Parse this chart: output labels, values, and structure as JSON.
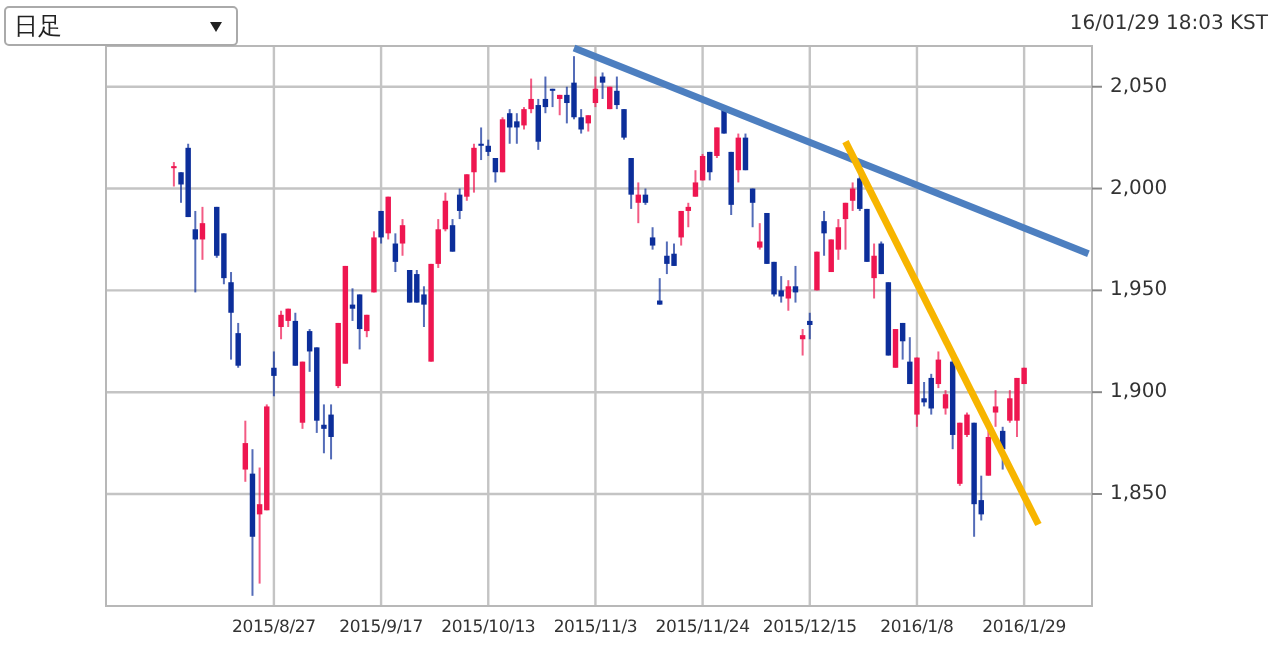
{
  "chart_data": {
    "type": "candlestick",
    "categories": [
      null,
      null,
      null,
      null,
      null,
      null,
      null,
      null,
      null,
      null,
      null,
      null,
      null,
      null,
      null,
      null,
      null,
      null,
      null,
      null,
      null,
      null,
      null,
      "2015/8/27",
      null,
      null,
      null,
      null,
      null,
      null,
      null,
      null,
      null,
      null,
      null,
      null,
      null,
      null,
      "2015/9/17",
      null,
      null,
      null,
      null,
      null,
      null,
      null,
      null,
      null,
      null,
      null,
      null,
      null,
      null,
      "2015/10/13",
      null,
      null,
      null,
      null,
      null,
      null,
      null,
      null,
      null,
      null,
      null,
      null,
      null,
      null,
      "2015/11/3",
      null,
      null,
      null,
      null,
      null,
      null,
      null,
      null,
      null,
      null,
      null,
      null,
      null,
      null,
      "2015/11/24",
      null,
      null,
      null,
      null,
      null,
      null,
      null,
      null,
      null,
      null,
      null,
      null,
      null,
      null,
      "2015/12/15",
      null,
      null,
      null,
      null,
      null,
      null,
      null,
      null,
      null,
      null,
      null,
      null,
      null,
      null,
      "2016/1/8",
      null,
      null,
      null,
      null,
      null,
      null,
      null,
      null,
      null,
      null,
      null,
      null,
      null,
      null,
      "2016/1/29",
      null,
      null,
      null,
      null,
      null,
      null,
      null,
      null,
      null
    ],
    "ohlc": [
      null,
      null,
      null,
      null,
      null,
      null,
      null,
      null,
      null,
      [
        2010,
        2013,
        2001,
        2011
      ],
      [
        2008,
        2008,
        1993,
        2002
      ],
      [
        2020,
        2022,
        1986,
        1986
      ],
      [
        1980,
        1989,
        1949,
        1975
      ],
      [
        1975,
        1991,
        1965,
        1983
      ],
      null,
      [
        1991,
        1991,
        1966,
        1967
      ],
      [
        1978,
        1978,
        1953,
        1956
      ],
      [
        1954,
        1959,
        1916,
        1939
      ],
      [
        1929,
        1934,
        1912,
        1913
      ],
      [
        1862,
        1886,
        1856,
        1875
      ],
      [
        1860,
        1872,
        1800,
        1829
      ],
      [
        1840,
        1863,
        1806,
        1845
      ],
      [
        1842,
        1894,
        1842,
        1893
      ],
      [
        1912,
        1920,
        1898,
        1908
      ],
      [
        1932,
        1940,
        1926,
        1938
      ],
      [
        1935,
        1941,
        1932,
        1941
      ],
      [
        1935,
        1939,
        1913,
        1913
      ],
      [
        1885,
        1915,
        1882,
        1915
      ],
      [
        1930,
        1931,
        1910,
        1920
      ],
      [
        1922,
        1922,
        1880,
        1886
      ],
      [
        1884,
        1894,
        1870,
        1882
      ],
      [
        1889,
        1894,
        1867,
        1878
      ],
      [
        1903,
        1934,
        1902,
        1934
      ],
      [
        1914,
        1962,
        1914,
        1962
      ],
      [
        1943,
        1951,
        1935,
        1941
      ],
      [
        1948,
        1948,
        1921,
        1931
      ],
      [
        1930,
        1938,
        1927,
        1938
      ],
      [
        1949,
        1979,
        1949,
        1976
      ],
      [
        1989,
        1989,
        1973,
        1976
      ],
      [
        1978,
        1996,
        1975,
        1996
      ],
      [
        1973,
        1978,
        1959,
        1964
      ],
      [
        1973,
        1985,
        1967,
        1982
      ],
      [
        1960,
        1960,
        1944,
        1944
      ],
      [
        1958,
        1960,
        1944,
        1944
      ],
      [
        1948,
        1952,
        1932,
        1943
      ],
      [
        1915,
        1963,
        1915,
        1963
      ],
      [
        1963,
        1985,
        1961,
        1980
      ],
      [
        1980,
        1998,
        1979,
        1994
      ],
      [
        1982,
        1985,
        1969,
        1969
      ],
      [
        1997,
        2000,
        1985,
        1989
      ],
      [
        1996,
        2007,
        1994,
        2007
      ],
      [
        2008,
        2022,
        1998,
        2020
      ],
      [
        2022,
        2030,
        2014,
        2021
      ],
      [
        2021,
        2024,
        2016,
        2018
      ],
      [
        2015,
        2015,
        2003,
        2008
      ],
      [
        2008,
        2035,
        2008,
        2034
      ],
      [
        2037,
        2039,
        2022,
        2030
      ],
      [
        2033,
        2037,
        2022,
        2030
      ],
      [
        2031,
        2040,
        2029,
        2039
      ],
      [
        2039,
        2054,
        2037,
        2044
      ],
      [
        2041,
        2044,
        2019,
        2023
      ],
      [
        2044,
        2055,
        2037,
        2040
      ],
      [
        2049,
        2049,
        2040,
        2048
      ],
      [
        2044,
        2046,
        2036,
        2046
      ],
      [
        2046,
        2050,
        2032,
        2042
      ],
      [
        2052,
        2065,
        2034,
        2035
      ],
      [
        2035,
        2039,
        2027,
        2029
      ],
      [
        2032,
        2036,
        2028,
        2036
      ],
      [
        2042,
        2055,
        2040,
        2049
      ],
      [
        2055,
        2057,
        2044,
        2052
      ],
      [
        2039,
        2050,
        2039,
        2050
      ],
      [
        2048,
        2055,
        2039,
        2041
      ],
      [
        2039,
        2039,
        2024,
        2025
      ],
      [
        2015,
        2015,
        1990,
        1997
      ],
      [
        1993,
        2003,
        1983,
        1997
      ],
      [
        1997,
        2000,
        1992,
        1993
      ],
      [
        1976,
        1981,
        1970,
        1972
      ],
      [
        1945,
        1956,
        1943,
        1943
      ],
      [
        1967,
        1974,
        1958,
        1963
      ],
      [
        1968,
        1973,
        1962,
        1962
      ],
      [
        1976,
        1989,
        1972,
        1989
      ],
      [
        1989,
        1993,
        1981,
        1991
      ],
      [
        1996,
        2009,
        1996,
        2003
      ],
      [
        2004,
        2017,
        2004,
        2016
      ],
      [
        2018,
        2018,
        2004,
        2008
      ],
      [
        2016,
        2030,
        2015,
        2030
      ],
      [
        2039,
        2040,
        2027,
        2027
      ],
      [
        2018,
        2018,
        1987,
        1992
      ],
      [
        2009,
        2027,
        2003,
        2025
      ],
      [
        2025,
        2027,
        2009,
        2009
      ],
      [
        2000,
        2000,
        1981,
        1993
      ],
      [
        1971,
        1983,
        1970,
        1974
      ],
      [
        1988,
        1988,
        1963,
        1963
      ],
      [
        1964,
        1964,
        1947,
        1948
      ],
      [
        1950,
        1957,
        1944,
        1947
      ],
      [
        1946,
        1955,
        1940,
        1952
      ],
      [
        1952,
        1962,
        1944,
        1949
      ],
      [
        1926,
        1931,
        1918,
        1928
      ],
      [
        1935,
        1939,
        1926,
        1933
      ],
      [
        1950,
        1969,
        1950,
        1969
      ],
      [
        1984,
        1989,
        1967,
        1978
      ],
      [
        1959,
        1975,
        1959,
        1975
      ],
      [
        1970,
        1985,
        1965,
        1981
      ],
      [
        1985,
        1993,
        1970,
        1993
      ],
      [
        1994,
        2003,
        1989,
        2000
      ],
      [
        2005,
        2008,
        1989,
        1990
      ],
      [
        1990,
        1990,
        1964,
        1964
      ],
      [
        1956,
        1973,
        1946,
        1967
      ],
      [
        1973,
        1974,
        1958,
        1958
      ],
      [
        1954,
        1954,
        1918,
        1918
      ],
      [
        1912,
        1931,
        1912,
        1931
      ],
      [
        1934,
        1934,
        1916,
        1925
      ],
      [
        1915,
        1927,
        1904,
        1904
      ],
      [
        1889,
        1917,
        1883,
        1917
      ],
      [
        1897,
        1905,
        1893,
        1895
      ],
      [
        1907,
        1909,
        1889,
        1892
      ],
      [
        1904,
        1920,
        1902,
        1916
      ],
      [
        1892,
        1901,
        1889,
        1899
      ],
      [
        1915,
        1916,
        1872,
        1879
      ],
      [
        1855,
        1885,
        1854,
        1885
      ],
      [
        1879,
        1890,
        1878,
        1889
      ],
      [
        1885,
        1885,
        1829,
        1845
      ],
      [
        1847,
        1859,
        1837,
        1840
      ],
      [
        1859,
        1881,
        1859,
        1878
      ],
      [
        1890,
        1901,
        1883,
        1893
      ],
      [
        1881,
        1883,
        1862,
        1872
      ],
      [
        1886,
        1901,
        1885,
        1897
      ],
      [
        1886,
        1907,
        1878,
        1907
      ],
      [
        1904,
        1912,
        1904,
        1912
      ],
      null,
      null,
      null,
      null,
      null,
      null,
      null,
      null,
      null
    ],
    "colors": [
      null,
      null,
      null,
      null,
      null,
      null,
      null,
      null,
      null,
      "#ee1650",
      "#0c2e9a",
      "#0c2e9a",
      "#0c2e9a",
      "#ee1650",
      null,
      "#0c2e9a",
      "#0c2e9a",
      "#0c2e9a",
      "#0c2e9a",
      "#ee1650",
      "#0c2e9a",
      "#ee1650",
      "#ee1650",
      "#0c2e9a",
      "#ee1650",
      "#ee1650",
      "#0c2e9a",
      "#ee1650",
      "#0c2e9a",
      "#0c2e9a",
      "#0c2e9a",
      "#0c2e9a",
      "#ee1650",
      "#ee1650",
      "#0c2e9a",
      "#0c2e9a",
      "#ee1650",
      "#ee1650",
      "#0c2e9a",
      "#ee1650",
      "#0c2e9a",
      "#ee1650",
      "#0c2e9a",
      "#0c2e9a",
      "#0c2e9a",
      "#ee1650",
      "#ee1650",
      "#ee1650",
      "#0c2e9a",
      "#0c2e9a",
      "#ee1650",
      "#ee1650",
      "#0c2e9a",
      "#0c2e9a",
      "#0c2e9a",
      "#ee1650",
      "#0c2e9a",
      "#0c2e9a",
      "#ee1650",
      "#ee1650",
      "#0c2e9a",
      "#0c2e9a",
      "#0c2e9a",
      "#ee1650",
      "#0c2e9a",
      "#0c2e9a",
      "#0c2e9a",
      "#ee1650",
      "#ee1650",
      "#0c2e9a",
      "#ee1650",
      "#0c2e9a",
      "#0c2e9a",
      "#0c2e9a",
      "#ee1650",
      "#0c2e9a",
      "#0c2e9a",
      "#0c2e9a",
      "#0c2e9a",
      "#0c2e9a",
      "#ee1650",
      "#ee1650",
      "#ee1650",
      "#ee1650",
      "#0c2e9a",
      "#ee1650",
      "#0c2e9a",
      "#0c2e9a",
      "#ee1650",
      "#0c2e9a",
      "#0c2e9a",
      "#ee1650",
      "#0c2e9a",
      "#0c2e9a",
      "#0c2e9a",
      "#ee1650",
      "#0c2e9a",
      "#ee1650",
      "#0c2e9a",
      "#ee1650",
      "#0c2e9a",
      "#ee1650",
      "#ee1650",
      "#ee1650",
      "#ee1650",
      "#0c2e9a",
      "#0c2e9a",
      "#ee1650",
      "#0c2e9a",
      "#0c2e9a",
      "#ee1650",
      "#0c2e9a",
      "#0c2e9a",
      "#ee1650",
      "#0c2e9a",
      "#0c2e9a",
      "#ee1650",
      "#ee1650",
      "#0c2e9a",
      "#ee1650",
      "#ee1650",
      "#0c2e9a",
      "#0c2e9a",
      "#ee1650",
      "#ee1650",
      "#0c2e9a",
      "#ee1650",
      "#ee1650",
      "#ee1650",
      null,
      null,
      null,
      null,
      null,
      null,
      null,
      null,
      null
    ],
    "series": [
      {
        "type": "line",
        "color": "#4d7fc0",
        "values": [
          null,
          null,
          null,
          null,
          null,
          null,
          null,
          null,
          null,
          null,
          null,
          null,
          null,
          null,
          null,
          null,
          null,
          null,
          null,
          null,
          null,
          null,
          null,
          null,
          null,
          null,
          null,
          null,
          null,
          null,
          null,
          null,
          null,
          null,
          null,
          null,
          null,
          null,
          null,
          null,
          null,
          null,
          null,
          null,
          null,
          null,
          null,
          null,
          null,
          null,
          null,
          null,
          null,
          null,
          null,
          null,
          null,
          null,
          null,
          null,
          null,
          null,
          null,
          null,
          null,
          2069,
          null,
          null,
          null,
          null,
          null,
          null,
          null,
          null,
          null,
          null,
          null,
          null,
          null,
          null,
          null,
          null,
          null,
          null,
          null,
          null,
          null,
          null,
          null,
          null,
          null,
          null,
          null,
          null,
          null,
          null,
          null,
          null,
          null,
          null,
          null,
          null,
          null,
          null,
          null,
          null,
          null,
          null,
          null,
          null,
          null,
          null,
          null,
          null,
          null,
          null,
          null,
          null,
          null,
          null,
          null,
          null,
          null,
          null,
          null,
          null,
          null,
          null,
          null,
          null,
          null,
          null,
          null,
          null,
          null,
          null,
          null,
          1968
        ]
      },
      {
        "type": "line",
        "color": "#f7b500",
        "values": [
          null,
          null,
          null,
          null,
          null,
          null,
          null,
          null,
          null,
          null,
          null,
          null,
          null,
          null,
          null,
          null,
          null,
          null,
          null,
          null,
          null,
          null,
          null,
          null,
          null,
          null,
          null,
          null,
          null,
          null,
          null,
          null,
          null,
          null,
          null,
          null,
          null,
          null,
          null,
          null,
          null,
          null,
          null,
          null,
          null,
          null,
          null,
          null,
          null,
          null,
          null,
          null,
          null,
          null,
          null,
          null,
          null,
          null,
          null,
          null,
          null,
          null,
          null,
          null,
          null,
          null,
          null,
          null,
          null,
          null,
          null,
          null,
          null,
          null,
          null,
          null,
          null,
          null,
          null,
          null,
          null,
          null,
          null,
          null,
          null,
          null,
          null,
          null,
          null,
          null,
          null,
          null,
          null,
          null,
          null,
          null,
          null,
          null,
          null,
          null,
          null,
          null,
          null,
          2023,
          null,
          null,
          null,
          null,
          null,
          null,
          null,
          null,
          null,
          null,
          null,
          null,
          null,
          null,
          null,
          null,
          null,
          null,
          null,
          null,
          null,
          null,
          null,
          null,
          null,
          null,
          1835,
          null,
          null,
          null,
          null,
          null,
          null,
          null
        ]
      }
    ],
    "ylim": [
      1795,
      2070
    ],
    "yticks": [
      {
        "value": 1850,
        "label": "1,850"
      },
      {
        "value": 1900,
        "label": "1,900"
      },
      {
        "value": 1950,
        "label": "1,950"
      },
      {
        "value": 2000,
        "label": "2,000"
      },
      {
        "value": 2050,
        "label": "2,050"
      }
    ],
    "grid": true,
    "annotations": [
      "日足",
      "16/01/29 18:03 KST"
    ]
  }
}
